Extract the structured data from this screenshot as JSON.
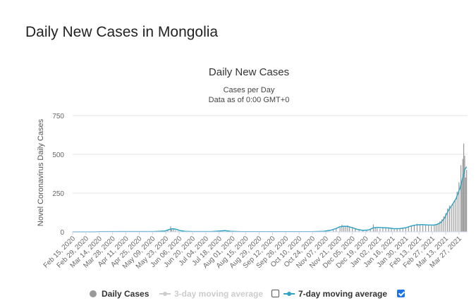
{
  "page": {
    "heading": "Daily New Cases in Mongolia"
  },
  "chart_data": {
    "type": "bar",
    "title": "Daily New Cases",
    "subtitle_lines": [
      "Cases per Day",
      "Data as of 0:00 GMT+0"
    ],
    "ylabel": "Novel Coronavirus Daily Cases",
    "xlabel": "",
    "ylim": [
      0,
      750
    ],
    "yticks": [
      0,
      250,
      500,
      750
    ],
    "x_start": "2020-02-15",
    "x_end": "2021-04-05",
    "x_tick_labels": [
      "Feb 15, 2020",
      "Feb 29, 2020",
      "Mar 14, 2020",
      "Mar 28, 2020",
      "Apr 11, 2020",
      "Apr 25, 2020",
      "May 09, 2020",
      "May 23, 2020",
      "Jun 06, 2020",
      "Jun 20, 2020",
      "Jul 04, 2020",
      "Jul 18, 2020",
      "Aug 01, 2020",
      "Aug 15, 2020",
      "Aug 29, 2020",
      "Sep 12, 2020",
      "Sep 26, 2020",
      "Oct 10, 2020",
      "Oct 24, 2020",
      "Nov 07, 2020",
      "Nov 21, 2020",
      "Dec 05, 2020",
      "Dec 19, 2020",
      "Jan 02, 2021",
      "Jan 16, 2021",
      "Jan 30, 2021",
      "Feb 13, 2021",
      "Feb 27, 2021",
      "Mar 13, 2021",
      "Mar 27, 2021"
    ],
    "grid": true,
    "legend": "bottom",
    "series": [
      {
        "name": "Daily Cases",
        "kind": "bar",
        "color": "#999999",
        "points": [
          [
            "2020-05-15",
            1
          ],
          [
            "2020-05-20",
            8
          ],
          [
            "2020-05-25",
            12
          ],
          [
            "2020-05-28",
            35
          ],
          [
            "2020-05-29",
            18
          ],
          [
            "2020-05-31",
            22
          ],
          [
            "2020-06-02",
            10
          ],
          [
            "2020-06-05",
            5
          ],
          [
            "2020-07-18",
            3
          ],
          [
            "2020-07-22",
            9
          ],
          [
            "2020-07-26",
            4
          ],
          [
            "2020-11-10",
            4
          ],
          [
            "2020-11-15",
            12
          ],
          [
            "2020-11-18",
            18
          ],
          [
            "2020-11-22",
            28
          ],
          [
            "2020-11-24",
            45
          ],
          [
            "2020-11-26",
            32
          ],
          [
            "2020-11-28",
            38
          ],
          [
            "2020-11-30",
            42
          ],
          [
            "2020-12-02",
            30
          ],
          [
            "2020-12-05",
            25
          ],
          [
            "2020-12-08",
            22
          ],
          [
            "2020-12-12",
            14
          ],
          [
            "2020-12-16",
            8
          ],
          [
            "2020-12-20",
            10
          ],
          [
            "2020-12-24",
            18
          ],
          [
            "2020-12-27",
            48
          ],
          [
            "2020-12-29",
            30
          ],
          [
            "2020-12-31",
            22
          ],
          [
            "2021-01-03",
            20
          ],
          [
            "2021-01-06",
            25
          ],
          [
            "2021-01-09",
            30
          ],
          [
            "2021-01-12",
            28
          ],
          [
            "2021-01-15",
            22
          ],
          [
            "2021-01-18",
            15
          ],
          [
            "2021-01-21",
            18
          ],
          [
            "2021-01-24",
            22
          ],
          [
            "2021-01-27",
            20
          ],
          [
            "2021-01-30",
            28
          ],
          [
            "2021-02-02",
            36
          ],
          [
            "2021-02-05",
            40
          ],
          [
            "2021-02-08",
            45
          ],
          [
            "2021-02-11",
            52
          ],
          [
            "2021-02-14",
            48
          ],
          [
            "2021-02-17",
            42
          ],
          [
            "2021-02-20",
            46
          ],
          [
            "2021-02-23",
            40
          ],
          [
            "2021-02-26",
            38
          ],
          [
            "2021-03-01",
            44
          ],
          [
            "2021-03-03",
            50
          ],
          [
            "2021-03-05",
            56
          ],
          [
            "2021-03-07",
            68
          ],
          [
            "2021-03-09",
            80
          ],
          [
            "2021-03-11",
            100
          ],
          [
            "2021-03-13",
            120
          ],
          [
            "2021-03-15",
            150
          ],
          [
            "2021-03-17",
            170
          ],
          [
            "2021-03-19",
            160
          ],
          [
            "2021-03-21",
            180
          ],
          [
            "2021-03-23",
            200
          ],
          [
            "2021-03-25",
            260
          ],
          [
            "2021-03-27",
            320
          ],
          [
            "2021-03-29",
            430
          ],
          [
            "2021-03-30",
            320
          ],
          [
            "2021-03-31",
            470
          ],
          [
            "2021-04-01",
            570
          ],
          [
            "2021-04-02",
            490
          ],
          [
            "2021-04-03",
            350
          ],
          [
            "2021-04-04",
            400
          ]
        ]
      },
      {
        "name": "3-day moving average",
        "kind": "line",
        "color": "#cccccc",
        "visible": false,
        "points": []
      },
      {
        "name": "7-day moving average",
        "kind": "line",
        "color": "#33a3c4",
        "visible": true,
        "points": [
          [
            "2020-02-15",
            0
          ],
          [
            "2020-03-10",
            0
          ],
          [
            "2020-03-14",
            1
          ],
          [
            "2020-04-10",
            2
          ],
          [
            "2020-05-10",
            2
          ],
          [
            "2020-05-22",
            5
          ],
          [
            "2020-05-28",
            18
          ],
          [
            "2020-05-31",
            20
          ],
          [
            "2020-06-03",
            16
          ],
          [
            "2020-06-07",
            8
          ],
          [
            "2020-06-12",
            3
          ],
          [
            "2020-06-20",
            2
          ],
          [
            "2020-07-10",
            2
          ],
          [
            "2020-07-18",
            5
          ],
          [
            "2020-07-24",
            8
          ],
          [
            "2020-07-30",
            3
          ],
          [
            "2020-08-10",
            1
          ],
          [
            "2020-09-01",
            1
          ],
          [
            "2020-10-01",
            1
          ],
          [
            "2020-10-24",
            1
          ],
          [
            "2020-11-05",
            3
          ],
          [
            "2020-11-12",
            10
          ],
          [
            "2020-11-18",
            22
          ],
          [
            "2020-11-22",
            33
          ],
          [
            "2020-11-26",
            36
          ],
          [
            "2020-11-30",
            35
          ],
          [
            "2020-12-05",
            27
          ],
          [
            "2020-12-10",
            16
          ],
          [
            "2020-12-16",
            9
          ],
          [
            "2020-12-22",
            12
          ],
          [
            "2020-12-27",
            26
          ],
          [
            "2021-01-01",
            28
          ],
          [
            "2021-01-06",
            27
          ],
          [
            "2021-01-12",
            25
          ],
          [
            "2021-01-18",
            20
          ],
          [
            "2021-01-24",
            21
          ],
          [
            "2021-01-30",
            26
          ],
          [
            "2021-02-05",
            38
          ],
          [
            "2021-02-10",
            44
          ],
          [
            "2021-02-16",
            47
          ],
          [
            "2021-02-22",
            44
          ],
          [
            "2021-02-28",
            43
          ],
          [
            "2021-03-04",
            48
          ],
          [
            "2021-03-08",
            60
          ],
          [
            "2021-03-12",
            90
          ],
          [
            "2021-03-16",
            140
          ],
          [
            "2021-03-20",
            175
          ],
          [
            "2021-03-24",
            215
          ],
          [
            "2021-03-28",
            280
          ],
          [
            "2021-03-31",
            350
          ],
          [
            "2021-04-02",
            400
          ],
          [
            "2021-04-04",
            420
          ]
        ]
      }
    ]
  },
  "legend": {
    "daily": "Daily Cases",
    "three_day": "3-day moving average",
    "seven_day": "7-day moving average",
    "three_day_checked": false,
    "seven_day_checked": true
  }
}
